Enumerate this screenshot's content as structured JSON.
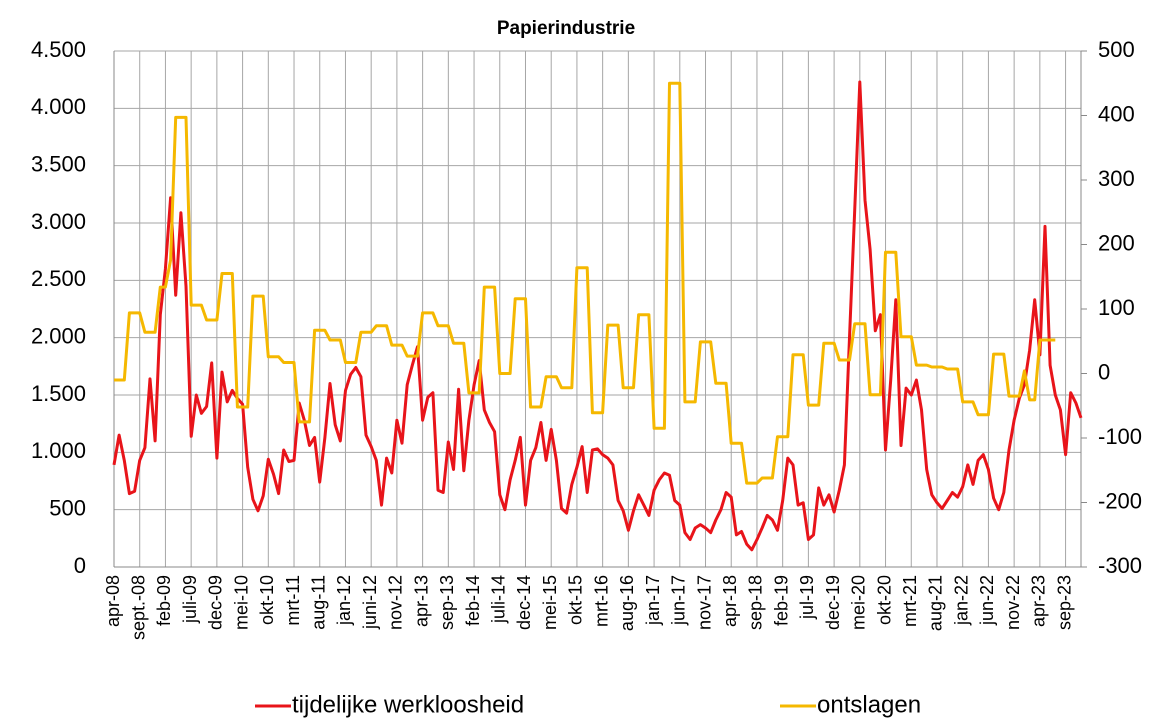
{
  "chart_data": {
    "type": "line",
    "title": "Papierindustrie",
    "categories": [
      "apr-08",
      null,
      null,
      null,
      null,
      "sept.-08",
      null,
      null,
      null,
      null,
      "feb-09",
      null,
      null,
      null,
      null,
      "juli-09",
      null,
      null,
      null,
      null,
      "dec-09",
      null,
      null,
      null,
      null,
      "mei-10",
      null,
      null,
      null,
      null,
      "okt-10",
      null,
      null,
      null,
      null,
      "mrt-11",
      null,
      null,
      null,
      null,
      "aug-11",
      null,
      null,
      null,
      null,
      "jan-12",
      null,
      null,
      null,
      null,
      "juni-12",
      null,
      null,
      null,
      null,
      "nov-12",
      null,
      null,
      null,
      null,
      "apr-13",
      null,
      null,
      null,
      null,
      "sep-13",
      null,
      null,
      null,
      null,
      "feb-14",
      null,
      null,
      null,
      null,
      "juli-14",
      null,
      null,
      null,
      null,
      "dec-14",
      null,
      null,
      null,
      null,
      "mei-15",
      null,
      null,
      null,
      null,
      "okt-15",
      null,
      null,
      null,
      null,
      "mrt-16",
      null,
      null,
      null,
      null,
      "aug-16",
      null,
      null,
      null,
      null,
      "jan-17",
      null,
      null,
      null,
      null,
      "jun-17",
      null,
      null,
      null,
      null,
      "nov-17",
      null,
      null,
      null,
      null,
      "apr-18",
      null,
      null,
      null,
      null,
      "sep-18",
      null,
      null,
      null,
      null,
      "feb-19",
      null,
      null,
      null,
      null,
      "jul-19",
      null,
      null,
      null,
      null,
      "dec-19",
      null,
      null,
      null,
      null,
      "mei-20",
      null,
      null,
      null,
      null,
      "okt-20",
      null,
      null,
      null,
      null,
      "mrt-21",
      null,
      null,
      null,
      null,
      "aug-21",
      null,
      null,
      null,
      null,
      "jan-22",
      null,
      null,
      null,
      null,
      "jun-22",
      null,
      null,
      null,
      null,
      "nov-22",
      null,
      null,
      null,
      null,
      "apr-23",
      null,
      null,
      null,
      null,
      "sep-23",
      null,
      null,
      null
    ],
    "series": [
      {
        "name": "tijdelijke werkloosheid",
        "color": "#e8141a",
        "axis": "y",
        "values": [
          890,
          1150,
          930,
          640,
          660,
          930,
          1040,
          1640,
          1100,
          2200,
          2600,
          3220,
          2370,
          3090,
          2450,
          1140,
          1500,
          1340,
          1400,
          1780,
          950,
          1700,
          1440,
          1540,
          1470,
          1420,
          870,
          590,
          490,
          620,
          940,
          810,
          640,
          1020,
          920,
          930,
          1430,
          1280,
          1060,
          1130,
          740,
          1130,
          1600,
          1240,
          1100,
          1540,
          1680,
          1740,
          1660,
          1150,
          1050,
          930,
          540,
          950,
          820,
          1280,
          1080,
          1590,
          1760,
          1920,
          1280,
          1480,
          1520,
          670,
          650,
          1090,
          850,
          1550,
          840,
          1280,
          1590,
          1800,
          1370,
          1260,
          1180,
          630,
          500,
          760,
          930,
          1130,
          540,
          930,
          1040,
          1260,
          930,
          1200,
          930,
          510,
          470,
          720,
          870,
          1050,
          650,
          1020,
          1030,
          980,
          950,
          890,
          580,
          490,
          320,
          490,
          630,
          540,
          450,
          670,
          760,
          820,
          800,
          580,
          540,
          300,
          240,
          340,
          370,
          340,
          300,
          410,
          500,
          650,
          610,
          280,
          310,
          200,
          150,
          240,
          340,
          450,
          410,
          320,
          580,
          950,
          890,
          540,
          560,
          240,
          280,
          690,
          540,
          630,
          480,
          670,
          890,
          2000,
          3110,
          4230,
          3200,
          2770,
          2060,
          2200,
          1020,
          1630,
          2330,
          1060,
          1560,
          1500,
          1630,
          1370,
          850,
          630,
          560,
          510,
          580,
          650,
          610,
          700,
          890,
          720,
          930,
          980,
          850,
          600,
          500,
          650,
          1020,
          1280,
          1470,
          1590,
          1890,
          2330,
          1850,
          2970,
          1760,
          1500,
          1370,
          980,
          1520,
          1430,
          1300
        ]
      },
      {
        "name": "ontslagen",
        "color": "#f5b800",
        "axis": "y2",
        "values": [
          -10,
          -10,
          -10,
          94,
          94,
          94,
          64,
          64,
          64,
          134,
          134,
          176,
          397,
          397,
          397,
          106,
          106,
          106,
          83,
          83,
          83,
          155,
          155,
          155,
          -52,
          -52,
          -52,
          120,
          120,
          120,
          26,
          26,
          26,
          17,
          17,
          17,
          -75,
          -75,
          -75,
          67,
          67,
          67,
          52,
          52,
          52,
          17,
          17,
          17,
          64,
          64,
          64,
          74,
          74,
          74,
          44,
          44,
          44,
          27,
          27,
          27,
          94,
          94,
          94,
          74,
          74,
          74,
          47,
          47,
          47,
          -30,
          -30,
          -30,
          134,
          134,
          134,
          0,
          0,
          0,
          116,
          116,
          116,
          -52,
          -52,
          -52,
          -5,
          -5,
          -5,
          -22,
          -22,
          -22,
          164,
          164,
          164,
          -61,
          -61,
          -61,
          75,
          75,
          75,
          -22,
          -22,
          -22,
          91,
          91,
          91,
          -85,
          -85,
          -85,
          450,
          450,
          450,
          -44,
          -44,
          -44,
          49,
          49,
          49,
          -15,
          -15,
          -15,
          -108,
          -108,
          -108,
          -170,
          -170,
          -170,
          -162,
          -162,
          -162,
          -98,
          -98,
          -98,
          29,
          29,
          29,
          -49,
          -49,
          -49,
          47,
          47,
          47,
          21,
          21,
          21,
          77,
          77,
          77,
          -33,
          -33,
          -33,
          188,
          188,
          188,
          57,
          57,
          57,
          13,
          13,
          13,
          10,
          10,
          10,
          7,
          7,
          7,
          -44,
          -44,
          -44,
          -64,
          -64,
          -64,
          30,
          30,
          30,
          -35,
          -35,
          -35,
          4,
          -41,
          -41,
          52,
          52,
          52,
          52,
          null,
          null,
          null,
          null,
          null
        ]
      }
    ],
    "ylim": [
      0,
      4500
    ],
    "yticks": [
      0,
      500,
      {
        "value": 1000,
        "label": "1.000"
      },
      {
        "value": 1500,
        "label": "1.500"
      },
      {
        "value": 2000,
        "label": "2.000"
      },
      {
        "value": 2500,
        "label": "2.500"
      },
      {
        "value": 3000,
        "label": "3.000"
      },
      {
        "value": 3500,
        "label": "3.500"
      },
      {
        "value": 4000,
        "label": "4.000"
      },
      {
        "value": 4500,
        "label": "4.500"
      }
    ],
    "y2lim": [
      -300,
      500
    ],
    "y2ticks": [
      -300,
      -200,
      -100,
      0,
      100,
      200,
      300,
      400,
      500
    ],
    "grid": true,
    "legend": "bottom"
  }
}
